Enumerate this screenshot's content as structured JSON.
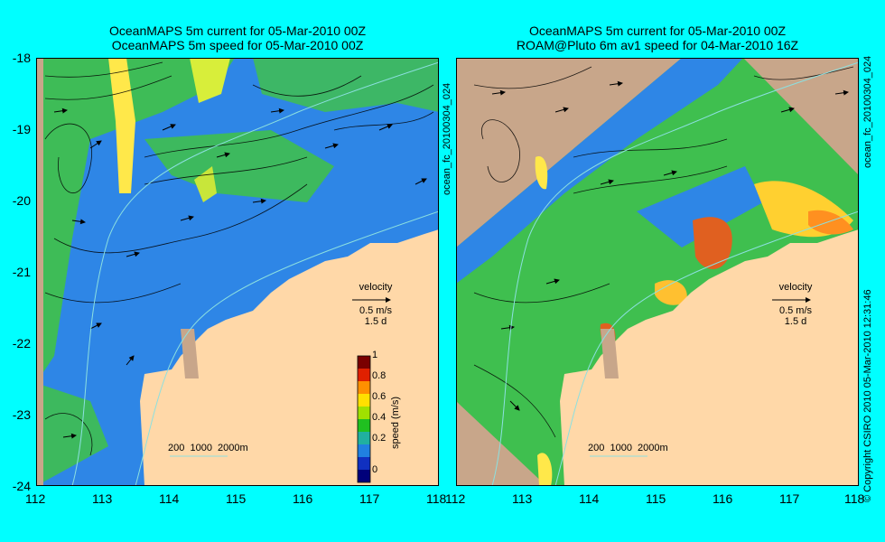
{
  "left_panel": {
    "title_line1": "OceanMAPS 5m current for 05-Mar-2010 00Z",
    "title_line2": "OceanMAPS 5m speed for 05-Mar-2010 00Z",
    "velocity_label": "velocity",
    "velocity_scale": "0.5 m/s",
    "velocity_time": "1.5 d",
    "depth_legend": "200  1000  2000m",
    "colorbar": {
      "label": "speed (m/s)",
      "ticks": [
        "1",
        "0.8",
        "0.6",
        "0.4",
        "0.2",
        "0"
      ],
      "colors": [
        "#7a0000",
        "#e02000",
        "#ff9000",
        "#ffe000",
        "#a0e000",
        "#20c020",
        "#20b0a0",
        "#2080e0",
        "#1030c0",
        "#00007a"
      ]
    }
  },
  "right_panel": {
    "title_line1": "OceanMAPS 5m current for 05-Mar-2010 00Z",
    "title_line2": "ROAM@Pluto 6m av1 speed for 04-Mar-2010 16Z",
    "velocity_label": "velocity",
    "velocity_scale": "0.5 m/s",
    "velocity_time": "1.5 d",
    "depth_legend": "200  1000  2000m",
    "side_label": "ocean_fc_20100304_024"
  },
  "left_side_label": "ocean_fc_20100304_024",
  "footer_side_label": "© Copyright CSIRO 2010   05-Mar-2010 12:31:46",
  "axes": {
    "y_ticks": [
      "-18",
      "-19",
      "-20",
      "-21",
      "-22",
      "-23",
      "-24"
    ],
    "x_ticks": [
      "112",
      "113",
      "114",
      "115",
      "116",
      "117",
      "118"
    ]
  },
  "colors": {
    "background": "#00FFFF",
    "land": "#FFD8A8",
    "island_land": "#C8A68A",
    "ocean_blue": "#2E86E6",
    "ocean_green": "#3FBF4F"
  }
}
